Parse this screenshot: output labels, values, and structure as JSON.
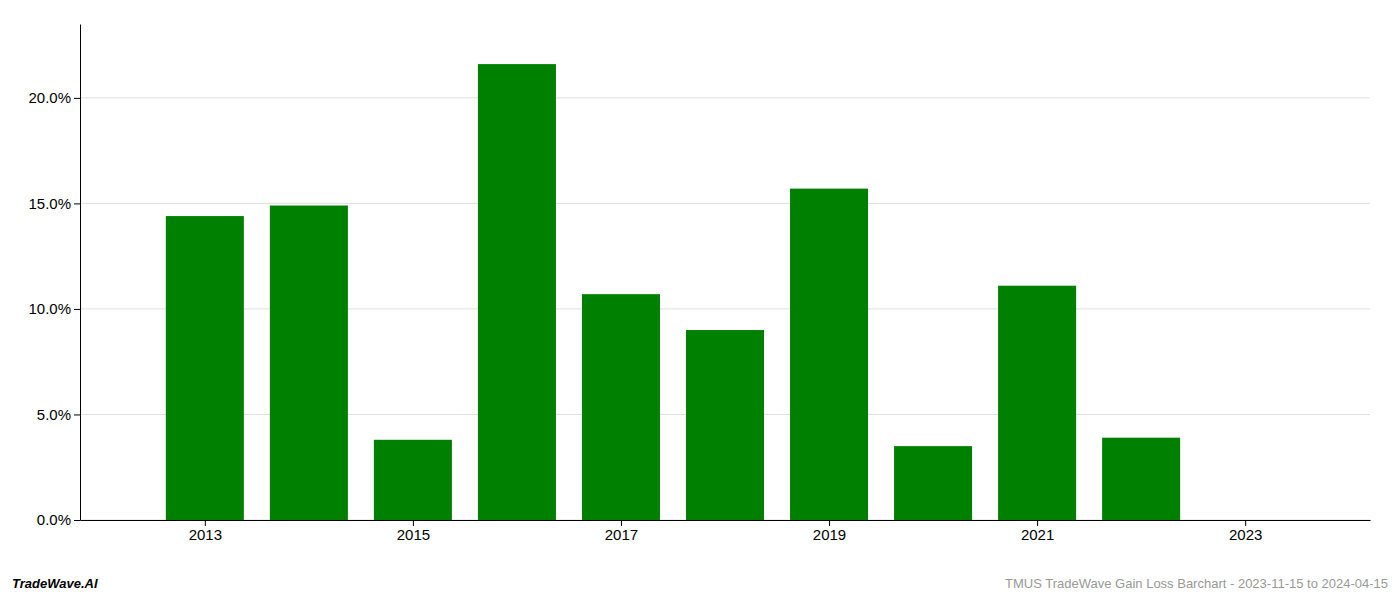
{
  "chart_data": {
    "type": "bar",
    "x": [
      2013,
      2014,
      2015,
      2016,
      2017,
      2018,
      2019,
      2020,
      2021,
      2022,
      2023
    ],
    "values": [
      0.144,
      0.149,
      0.038,
      0.216,
      0.107,
      0.09,
      0.157,
      0.035,
      0.111,
      0.039,
      0.0
    ],
    "color": "#008000",
    "xlim": [
      2011.8,
      2024.2
    ],
    "xticks": [
      2013,
      2015,
      2017,
      2019,
      2021,
      2023
    ],
    "ylim": [
      0,
      0.235
    ],
    "yticks": [
      {
        "value": 0.0,
        "label": "0.0%"
      },
      {
        "value": 0.05,
        "label": "5.0%"
      },
      {
        "value": 0.1,
        "label": "10.0%"
      },
      {
        "value": 0.15,
        "label": "15.0%"
      },
      {
        "value": 0.2,
        "label": "20.0%"
      }
    ],
    "grid": true,
    "annotations": [
      "TradeWave.AI",
      "TMUS TradeWave Gain Loss Barchart - 2023-11-15 to 2024-04-15"
    ]
  }
}
